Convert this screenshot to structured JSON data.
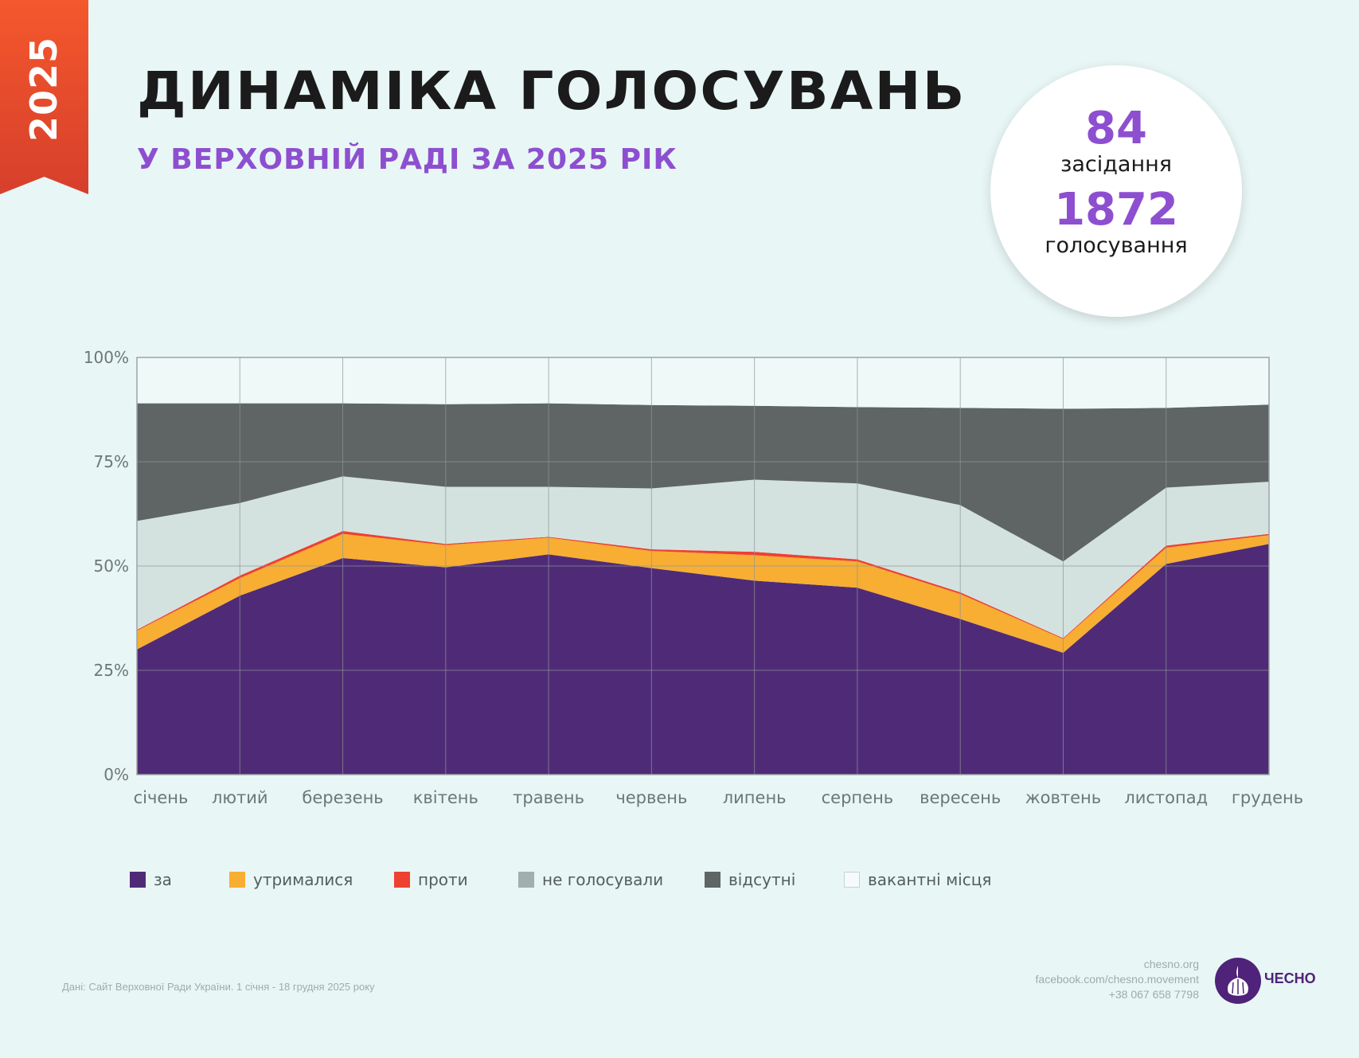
{
  "ribbon": {
    "year": "2025"
  },
  "header": {
    "title": "ДИНАМІКА ГОЛОСУВАНЬ",
    "subtitle": "У ВЕРХОВНІЙ РАДІ ЗА 2025 РІК"
  },
  "stats": {
    "sessions_value": "84",
    "sessions_label": "засідання",
    "votes_value": "1872",
    "votes_label": "голосування"
  },
  "chart_data": {
    "type": "area",
    "stacked": true,
    "percent": true,
    "categories": [
      "січень",
      "лютий",
      "березень",
      "квітень",
      "травень",
      "червень",
      "липень",
      "серпень",
      "вересень",
      "жовтень",
      "листопад",
      "грудень"
    ],
    "ylim": [
      0,
      100
    ],
    "yticks": [
      "0%",
      "25%",
      "50%",
      "75%",
      "100%"
    ],
    "ytick_values": [
      0,
      25,
      50,
      75,
      100
    ],
    "grid": true,
    "legend_placement": "bottom",
    "series": [
      {
        "name": "за",
        "color": "#4f2b77",
        "values": [
          30.0,
          42.9,
          51.9,
          49.7,
          52.8,
          49.5,
          46.5,
          44.8,
          37.3,
          29.2,
          50.5,
          55.3
        ]
      },
      {
        "name": "утрималися",
        "color": "#f7ae33",
        "values": [
          4.5,
          4.2,
          5.8,
          5.3,
          4.0,
          4.1,
          6.1,
          6.3,
          6.0,
          3.3,
          3.9,
          2.1
        ]
      },
      {
        "name": "проти",
        "color": "#ee4130",
        "values": [
          0.2,
          0.6,
          0.7,
          0.3,
          0.2,
          0.4,
          0.8,
          0.5,
          0.4,
          0.2,
          0.5,
          0.3
        ]
      },
      {
        "name": "не голосували",
        "color": "#d3e2df",
        "legend_color": "#a2b0ad",
        "values": [
          26.1,
          17.4,
          13.1,
          13.7,
          12.0,
          14.6,
          17.3,
          18.2,
          20.9,
          18.4,
          13.9,
          12.5
        ]
      },
      {
        "name": "відсутні",
        "color": "#5f6564",
        "values": [
          28.2,
          23.9,
          17.5,
          19.8,
          20.0,
          20.0,
          17.7,
          18.3,
          23.3,
          36.6,
          19.1,
          18.5
        ]
      },
      {
        "name": "вакантні місця",
        "color": "#eef9f8",
        "values": [
          11.0,
          11.0,
          11.0,
          11.2,
          11.0,
          11.4,
          11.6,
          11.9,
          12.1,
          12.3,
          12.1,
          11.3
        ]
      }
    ]
  },
  "footer": {
    "source": "Дані: Сайт Верховної Ради України. 1 січня - 18 грудня 2025 року",
    "website": "chesno.org",
    "facebook": "facebook.com/chesno.movement",
    "phone": "+38 067 658 7798",
    "logo_text": "ЧЕСНО"
  }
}
